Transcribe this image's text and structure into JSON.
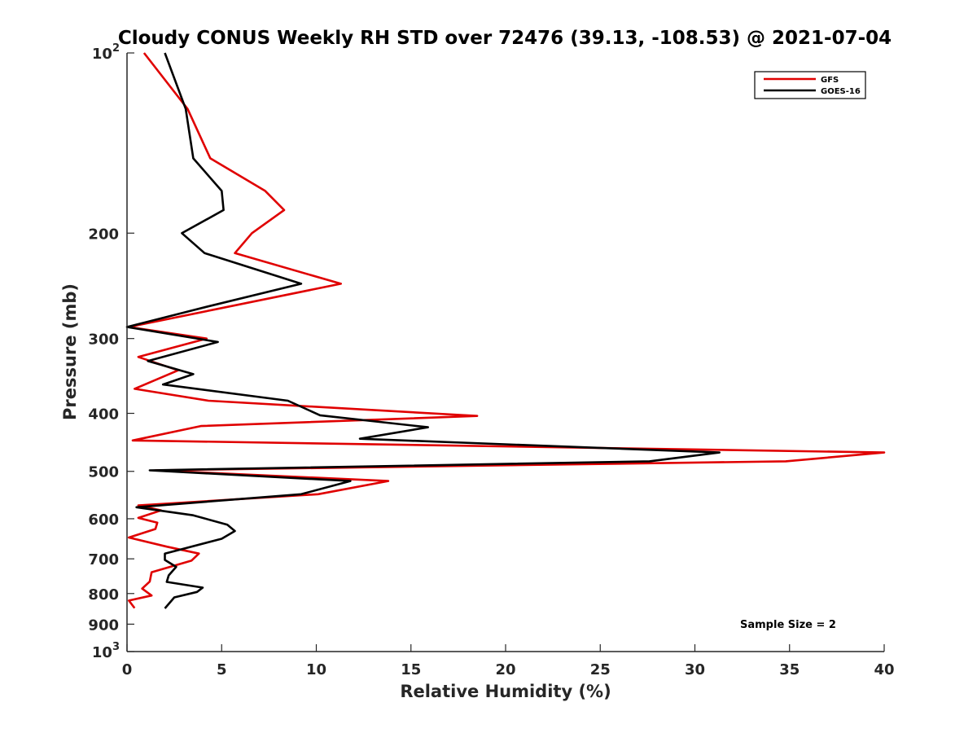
{
  "chart_data": {
    "type": "line",
    "title": "Cloudy CONUS Weekly RH STD over 72476 (39.13, -108.53) @ 2021-07-04",
    "xlabel": "Relative Humidity (%)",
    "ylabel": "Pressure (mb)",
    "xlim": [
      0,
      40
    ],
    "ylim": [
      100,
      1000
    ],
    "y_scale": "log",
    "y_reversed": true,
    "x_ticks": [
      "0",
      "5",
      "10",
      "15",
      "20",
      "25",
      "30",
      "35",
      "40"
    ],
    "y_ticks": [
      {
        "value": 100,
        "base": "10",
        "exp": "2"
      },
      {
        "value": 200,
        "label": "200"
      },
      {
        "value": 300,
        "label": "300"
      },
      {
        "value": 400,
        "label": "400"
      },
      {
        "value": 500,
        "label": "500"
      },
      {
        "value": 600,
        "label": "600"
      },
      {
        "value": 700,
        "label": "700"
      },
      {
        "value": 800,
        "label": "800"
      },
      {
        "value": 900,
        "label": "900"
      },
      {
        "value": 1000,
        "base": "10",
        "exp": "3"
      }
    ],
    "grid": false,
    "legend_position": "top-right",
    "annotation": "Sample Size = 2",
    "series": [
      {
        "name": "GFS",
        "color": "#e00000",
        "points": [
          [
            0.9,
            100
          ],
          [
            3.2,
            124
          ],
          [
            4.4,
            150
          ],
          [
            7.3,
            170
          ],
          [
            8.3,
            183
          ],
          [
            6.6,
            200
          ],
          [
            5.7,
            216
          ],
          [
            11.3,
            243
          ],
          [
            0.1,
            287
          ],
          [
            4.2,
            300
          ],
          [
            0.6,
            322
          ],
          [
            2.7,
            339
          ],
          [
            0.4,
            364
          ],
          [
            4.3,
            381
          ],
          [
            18.5,
            404
          ],
          [
            3.9,
            420
          ],
          [
            0.3,
            444
          ],
          [
            40.0,
            465
          ],
          [
            34.8,
            481
          ],
          [
            1.5,
            498
          ],
          [
            13.8,
            519
          ],
          [
            10.1,
            546
          ],
          [
            0.6,
            570
          ],
          [
            1.8,
            581
          ],
          [
            0.6,
            598
          ],
          [
            1.6,
            609
          ],
          [
            1.5,
            624
          ],
          [
            0.1,
            645
          ],
          [
            2.1,
            668
          ],
          [
            3.8,
            686
          ],
          [
            3.4,
            705
          ],
          [
            1.3,
            737
          ],
          [
            1.2,
            764
          ],
          [
            0.8,
            785
          ],
          [
            1.3,
            806
          ],
          [
            0.1,
            822
          ],
          [
            0.4,
            846
          ]
        ]
      },
      {
        "name": "GOES-16",
        "color": "#000000",
        "points": [
          [
            2.0,
            100
          ],
          [
            3.1,
            124
          ],
          [
            3.5,
            150
          ],
          [
            5.0,
            170
          ],
          [
            5.1,
            183
          ],
          [
            2.9,
            200
          ],
          [
            4.1,
            216
          ],
          [
            9.2,
            243
          ],
          [
            4.1,
            266
          ],
          [
            0.0,
            287
          ],
          [
            4.8,
            304
          ],
          [
            1.1,
            327
          ],
          [
            3.5,
            344
          ],
          [
            1.9,
            358
          ],
          [
            8.5,
            381
          ],
          [
            10.2,
            403
          ],
          [
            15.9,
            422
          ],
          [
            12.3,
            441
          ],
          [
            31.3,
            465
          ],
          [
            27.6,
            481
          ],
          [
            1.2,
            498
          ],
          [
            11.8,
            519
          ],
          [
            9.2,
            546
          ],
          [
            0.5,
            574
          ],
          [
            3.5,
            592
          ],
          [
            5.3,
            614
          ],
          [
            5.7,
            629
          ],
          [
            5.0,
            648
          ],
          [
            2.0,
            686
          ],
          [
            2.0,
            703
          ],
          [
            2.6,
            722
          ],
          [
            2.2,
            746
          ],
          [
            2.1,
            765
          ],
          [
            4.0,
            782
          ],
          [
            3.7,
            795
          ],
          [
            2.5,
            812
          ],
          [
            2.0,
            847
          ]
        ]
      }
    ]
  }
}
